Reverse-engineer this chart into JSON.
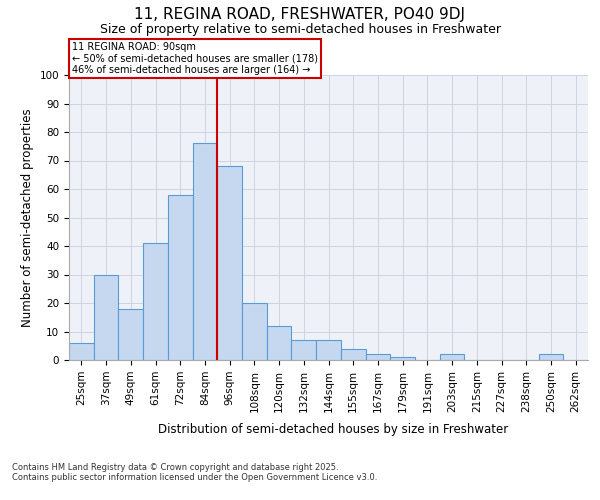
{
  "title": "11, REGINA ROAD, FRESHWATER, PO40 9DJ",
  "subtitle": "Size of property relative to semi-detached houses in Freshwater",
  "xlabel": "Distribution of semi-detached houses by size in Freshwater",
  "ylabel": "Number of semi-detached properties",
  "bar_labels": [
    "25sqm",
    "37sqm",
    "49sqm",
    "61sqm",
    "72sqm",
    "84sqm",
    "96sqm",
    "108sqm",
    "120sqm",
    "132sqm",
    "144sqm",
    "155sqm",
    "167sqm",
    "179sqm",
    "191sqm",
    "203sqm",
    "215sqm",
    "227sqm",
    "238sqm",
    "250sqm",
    "262sqm"
  ],
  "bar_values": [
    6,
    30,
    18,
    41,
    58,
    76,
    68,
    20,
    12,
    7,
    7,
    4,
    2,
    1,
    0,
    2,
    0,
    0,
    0,
    2,
    0
  ],
  "bar_color": "#c5d8f0",
  "bar_edge_color": "#5b9bd5",
  "property_label": "11 REGINA ROAD: 90sqm",
  "annotation_line1": "← 50% of semi-detached houses are smaller (178)",
  "annotation_line2": "46% of semi-detached houses are larger (164) →",
  "vline_color": "#cc0000",
  "annotation_box_color": "#ffffff",
  "annotation_box_edge": "#cc0000",
  "grid_color": "#c8d0dc",
  "background_color": "#eef2f8",
  "footer_text": "Contains HM Land Registry data © Crown copyright and database right 2025.\nContains public sector information licensed under the Open Government Licence v3.0.",
  "ylim": [
    0,
    100
  ],
  "title_fontsize": 11,
  "subtitle_fontsize": 9,
  "axis_label_fontsize": 8.5,
  "tick_fontsize": 7.5,
  "footer_fontsize": 6
}
